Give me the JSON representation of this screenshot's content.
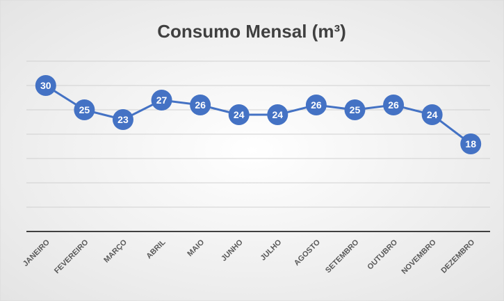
{
  "chart_data": {
    "type": "line",
    "title": "Consumo Mensal (m³)",
    "categories": [
      "JANEIRO",
      "FEVEREIRO",
      "MARÇO",
      "ABRIL",
      "MAIO",
      "JUNHO",
      "JULHO",
      "AGOSTO",
      "SETEMBRO",
      "OUTUBRO",
      "NOVEMBRO",
      "DEZEMBRO"
    ],
    "values": [
      30,
      25,
      23,
      27,
      26,
      24,
      24,
      26,
      25,
      26,
      24,
      18
    ],
    "color": "#4472c4",
    "ylim": [
      0,
      35
    ],
    "yticks": [
      0,
      5,
      10,
      15,
      20,
      25,
      30,
      35
    ],
    "grid": true
  }
}
